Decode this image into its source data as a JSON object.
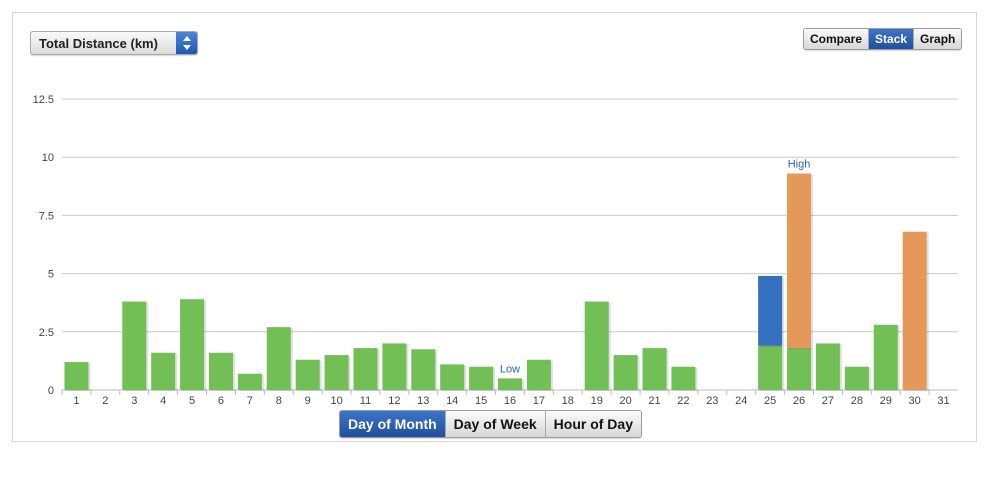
{
  "controls": {
    "metric_select": "Total Distance (km)",
    "mode_options": [
      "Compare",
      "Stack",
      "Graph"
    ],
    "mode_active": "Stack",
    "group_options": [
      "Day of Month",
      "Day of Week",
      "Hour of Day"
    ],
    "group_active": "Day of Month"
  },
  "colors": {
    "green": "#71bf55",
    "blue": "#3470bd",
    "orange": "#e4995a",
    "grid": "#c9c9c9",
    "marker": "#2a63b7"
  },
  "chart_data": {
    "type": "bar",
    "stacked": true,
    "title": "",
    "xlabel": "",
    "ylabel": "",
    "categories": [
      "1",
      "2",
      "3",
      "4",
      "5",
      "6",
      "7",
      "8",
      "9",
      "10",
      "11",
      "12",
      "13",
      "14",
      "15",
      "16",
      "17",
      "18",
      "19",
      "20",
      "21",
      "22",
      "23",
      "24",
      "25",
      "26",
      "27",
      "28",
      "29",
      "30",
      "31"
    ],
    "ylim": [
      0,
      12.5
    ],
    "yticks": [
      "0",
      "2.5",
      "5",
      "7.5",
      "10",
      "12.5"
    ],
    "grid": true,
    "series": [
      {
        "color": "green",
        "values": [
          1.2,
          0,
          3.8,
          1.6,
          3.9,
          1.6,
          0.7,
          2.7,
          1.3,
          1.5,
          1.8,
          2.0,
          1.75,
          1.1,
          1.0,
          0.5,
          1.3,
          0,
          3.8,
          1.5,
          1.8,
          1.0,
          0,
          0,
          1.9,
          1.8,
          2.0,
          1.0,
          2.8,
          0,
          0
        ]
      },
      {
        "color": "blue",
        "values": [
          0,
          0,
          0,
          0,
          0,
          0,
          0,
          0,
          0,
          0,
          0,
          0,
          0,
          0,
          0,
          0,
          0,
          0,
          0,
          0,
          0,
          0,
          0,
          0,
          3.0,
          0,
          0,
          0,
          0,
          0,
          0
        ]
      },
      {
        "color": "orange",
        "values": [
          0,
          0,
          0,
          0,
          0,
          0,
          0,
          0,
          0,
          0,
          0,
          0,
          0,
          0,
          0,
          0,
          0,
          0,
          0,
          0,
          0,
          0,
          0,
          0,
          0,
          7.5,
          0,
          0,
          0,
          6.8,
          0
        ]
      }
    ],
    "annotations": [
      {
        "text": "High",
        "category": "26"
      },
      {
        "text": "Low",
        "category": "16"
      }
    ]
  }
}
